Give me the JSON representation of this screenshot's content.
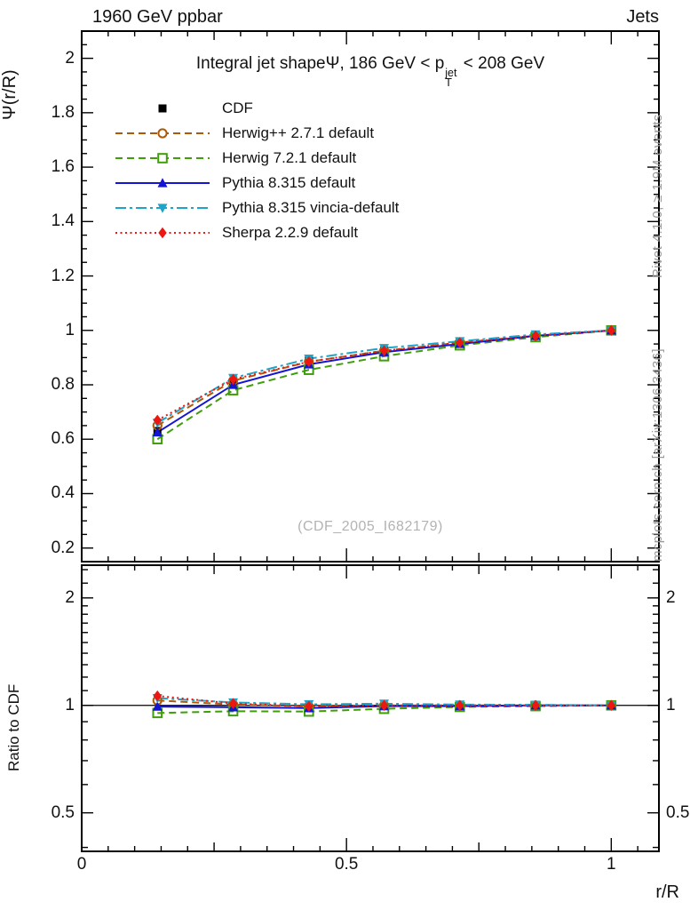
{
  "header": {
    "left": "1960 GeV ppbar",
    "right": "Jets"
  },
  "title": {
    "prefix": "Integral jet shape",
    "psi": "Ψ",
    "mid": ", 186 GeV < p",
    "sup": "jet",
    "sub": "T",
    "suffix": " < 208 GeV"
  },
  "watermark": "(CDF_2005_I682179)",
  "side_notes": {
    "top": "Rivet 4.1.0, ≥ 1.9M events",
    "bottom": "mcplots.cern.ch [arXiv:1306.3436]"
  },
  "chart_data": {
    "type": "line",
    "title": "Integral jet shape Ψ, 186 GeV < pT(jet) < 208 GeV",
    "xlabel": "r/R",
    "ylabel_main": "Ψ(r/R)",
    "ylabel_ratio": "Ratio to CDF",
    "xlim": [
      0,
      1.09
    ],
    "main_ylim": [
      0.15,
      2.1
    ],
    "ratio_ylim": [
      0.39,
      2.47
    ],
    "ratio_yscale": "log",
    "grid": false,
    "legend_position": "top-left",
    "x": [
      0.143,
      0.286,
      0.429,
      0.571,
      0.714,
      0.857,
      1.0
    ],
    "x_ticks": [
      {
        "v": 0,
        "label": "0"
      },
      {
        "v": 0.5,
        "label": "0.5"
      },
      {
        "v": 1,
        "label": "1"
      }
    ],
    "x_minor_step": 0.05,
    "y_ticks_main": [
      {
        "v": 0.2,
        "label": "0.2"
      },
      {
        "v": 0.4,
        "label": "0.4"
      },
      {
        "v": 0.6,
        "label": "0.6"
      },
      {
        "v": 0.8,
        "label": "0.8"
      },
      {
        "v": 1,
        "label": "1"
      },
      {
        "v": 1.2,
        "label": "1.2"
      },
      {
        "v": 1.4,
        "label": "1.4"
      },
      {
        "v": 1.6,
        "label": "1.6"
      },
      {
        "v": 1.8,
        "label": "1.8"
      },
      {
        "v": 2,
        "label": "2"
      }
    ],
    "y_minor_step_main": 0.05,
    "y_ticks_ratio": [
      {
        "v": 2,
        "label": "2"
      },
      {
        "v": 1,
        "label": "1"
      },
      {
        "v": 0.5,
        "label": "0.5"
      }
    ],
    "ratio_minor_ticks": [
      0.4,
      0.5,
      0.6,
      0.7,
      0.8,
      0.9,
      1.0,
      1.1,
      1.2,
      1.3,
      1.4,
      1.5,
      1.6,
      1.7,
      1.8,
      1.9,
      2.0,
      2.2,
      2.4
    ],
    "ratio_reference": 1,
    "series": [
      {
        "name": "CDF",
        "color": "#000000",
        "marker": "square-filled",
        "line": "none",
        "values": [
          0.63,
          0.81,
          0.89,
          0.925,
          0.955,
          0.98,
          1.0
        ],
        "ratio": null
      },
      {
        "name": "Herwig++ 2.7.1 default",
        "color": "#ac5a0a",
        "marker": "circle-open",
        "line": "dashed",
        "values": [
          0.65,
          0.815,
          0.885,
          0.925,
          0.955,
          0.98,
          1.0
        ],
        "ratio": [
          1.032,
          1.006,
          0.994,
          1.0,
          1.0,
          1.0,
          1.0
        ]
      },
      {
        "name": "Herwig 7.2.1 default",
        "color": "#3f9e0a",
        "marker": "square-open",
        "line": "dashed",
        "values": [
          0.6,
          0.78,
          0.855,
          0.905,
          0.945,
          0.975,
          1.0
        ],
        "ratio": [
          0.952,
          0.963,
          0.961,
          0.978,
          0.99,
          0.995,
          1.0
        ]
      },
      {
        "name": "Pythia 8.315 default",
        "color": "#1414d4",
        "marker": "triangle-up-filled",
        "line": "solid",
        "values": [
          0.625,
          0.8,
          0.875,
          0.92,
          0.95,
          0.98,
          1.0
        ],
        "ratio": [
          0.992,
          0.988,
          0.983,
          0.995,
          0.995,
          1.0,
          1.0
        ]
      },
      {
        "name": "Pythia 8.315 vincia-default",
        "color": "#1fa3c9",
        "marker": "triangle-down-filled",
        "line": "dashdot",
        "values": [
          0.66,
          0.825,
          0.896,
          0.935,
          0.96,
          0.985,
          1.0
        ],
        "ratio": [
          1.048,
          1.019,
          1.007,
          1.011,
          1.005,
          1.004,
          1.0
        ]
      },
      {
        "name": "Sherpa 2.2.9 default",
        "color": "#ed1611",
        "marker": "diamond-filled",
        "line": "dotted",
        "values": [
          0.67,
          0.82,
          0.885,
          0.925,
          0.955,
          0.98,
          1.0
        ],
        "ratio": [
          1.063,
          1.012,
          0.994,
          1.0,
          1.0,
          1.0,
          1.0
        ]
      }
    ]
  }
}
